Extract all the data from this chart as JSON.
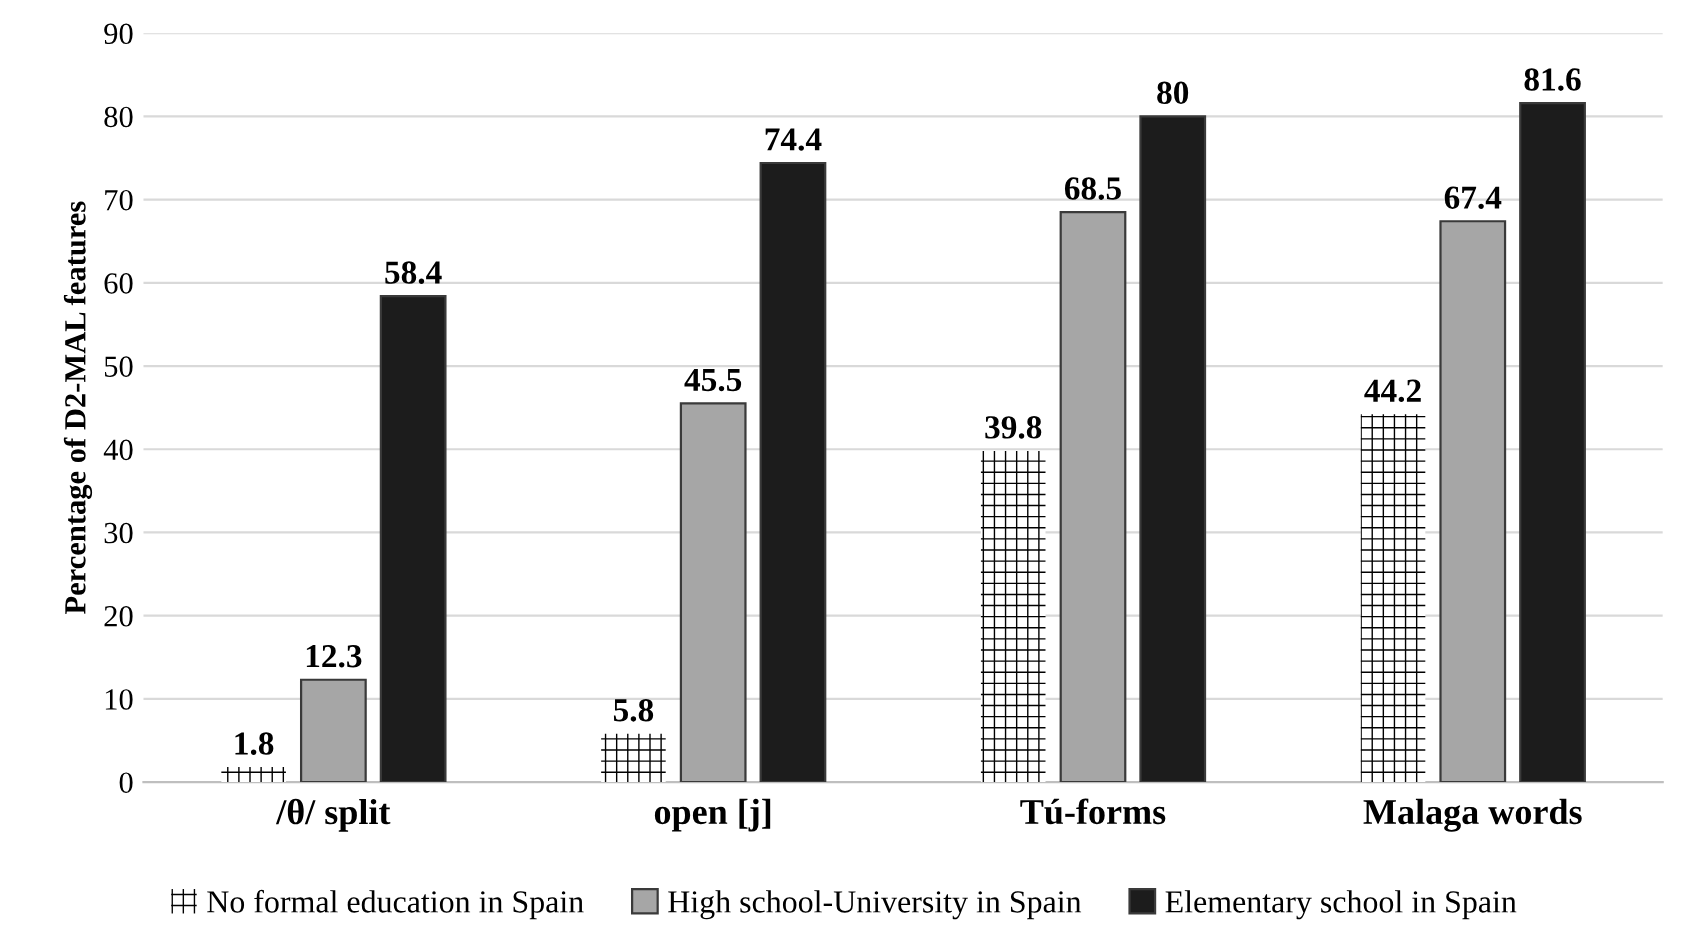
{
  "chart_data": {
    "type": "bar",
    "ylabel": "Percentage of D2-MAL features",
    "categories": [
      "/θ/ split",
      "open [j]",
      "Tú-forms",
      "Malaga words"
    ],
    "series": [
      {
        "name": "No formal education in Spain",
        "color": "#ffffff",
        "values": [
          1.8,
          5.8,
          39.8,
          44.2
        ]
      },
      {
        "name": "High school-University in Spain",
        "color": "#a6a6a6",
        "values": [
          12.3,
          45.5,
          68.5,
          67.4
        ]
      },
      {
        "name": "Elementary school in Spain",
        "color": "#1c1c1c",
        "values": [
          58.4,
          74.4,
          80,
          81.6
        ]
      }
    ],
    "ylim": [
      0,
      90
    ],
    "yticks": [
      0,
      10,
      20,
      30,
      40,
      50,
      60,
      70,
      80,
      90
    ],
    "grid": "y",
    "legend": "bottom",
    "data_labels": true
  }
}
